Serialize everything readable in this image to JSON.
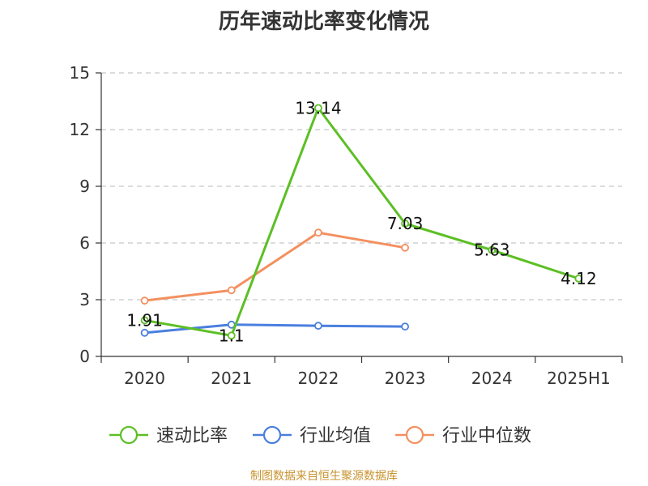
{
  "title": "历年速动比率变化情况",
  "source": "制图数据来自恒生聚源数据库",
  "chart_data": {
    "type": "line",
    "title": "历年速动比率变化情况",
    "categories": [
      "2020",
      "2021",
      "2022",
      "2023",
      "2024",
      "2025H1"
    ],
    "ylim": [
      0,
      15
    ],
    "yticks": [
      0,
      3,
      6,
      9,
      12,
      15
    ],
    "grid": true,
    "legend_position": "bottom",
    "series": [
      {
        "name": "速动比率",
        "color": "#5cbf24",
        "values": [
          1.91,
          1.1,
          13.14,
          7.03,
          5.63,
          4.12
        ],
        "labels": [
          "1.91",
          "1.1",
          "13.14",
          "7.03",
          "5.63",
          "4.12"
        ]
      },
      {
        "name": "行业均值",
        "color": "#4a7fdf",
        "values": [
          1.25,
          1.68,
          1.62,
          1.58,
          null,
          null
        ]
      },
      {
        "name": "行业中位数",
        "color": "#f39060",
        "values": [
          2.95,
          3.5,
          6.55,
          5.75,
          null,
          null
        ]
      }
    ]
  }
}
